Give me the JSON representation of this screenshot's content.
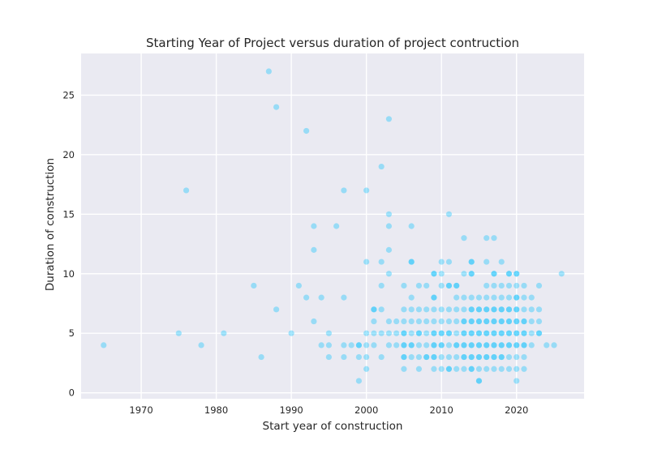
{
  "chart_data": {
    "type": "scatter",
    "title": "Starting Year of Project versus duration of project contruction",
    "xlabel": "Start year of construction",
    "ylabel": "Duration of construction",
    "xlim": [
      1962,
      2029
    ],
    "ylim": [
      -0.5,
      28.5
    ],
    "xticks": [
      1970,
      1980,
      1990,
      2000,
      2010,
      2020
    ],
    "yticks": [
      0,
      5,
      10,
      15,
      20,
      25
    ],
    "grid": true,
    "background": "#eaeaf2",
    "point_color": "#00bfff",
    "point_alpha": 0.35,
    "points": [
      [
        1965,
        4
      ],
      [
        1975,
        5
      ],
      [
        1976,
        17
      ],
      [
        1978,
        4
      ],
      [
        1981,
        5
      ],
      [
        1985,
        9
      ],
      [
        1986,
        3
      ],
      [
        1987,
        27
      ],
      [
        1988,
        24
      ],
      [
        1988,
        7
      ],
      [
        1990,
        5
      ],
      [
        1991,
        9
      ],
      [
        1992,
        22
      ],
      [
        1992,
        8
      ],
      [
        1993,
        14
      ],
      [
        1993,
        12
      ],
      [
        1993,
        6
      ],
      [
        1994,
        8
      ],
      [
        1994,
        4
      ],
      [
        1995,
        5
      ],
      [
        1995,
        4
      ],
      [
        1995,
        3
      ],
      [
        1996,
        14
      ],
      [
        1997,
        17
      ],
      [
        1997,
        8
      ],
      [
        1997,
        4
      ],
      [
        1997,
        3
      ],
      [
        1998,
        4
      ],
      [
        1999,
        4
      ],
      [
        1999,
        4
      ],
      [
        1999,
        3
      ],
      [
        1999,
        1
      ],
      [
        2000,
        17
      ],
      [
        2000,
        11
      ],
      [
        2000,
        5
      ],
      [
        2000,
        4
      ],
      [
        2000,
        3
      ],
      [
        2000,
        2
      ],
      [
        2001,
        7
      ],
      [
        2001,
        7
      ],
      [
        2001,
        6
      ],
      [
        2001,
        5
      ],
      [
        2001,
        4
      ],
      [
        2002,
        19
      ],
      [
        2002,
        11
      ],
      [
        2002,
        9
      ],
      [
        2002,
        7
      ],
      [
        2002,
        5
      ],
      [
        2002,
        3
      ],
      [
        2003,
        23
      ],
      [
        2003,
        15
      ],
      [
        2003,
        14
      ],
      [
        2003,
        12
      ],
      [
        2003,
        10
      ],
      [
        2003,
        6
      ],
      [
        2003,
        5
      ],
      [
        2003,
        4
      ],
      [
        2004,
        6
      ],
      [
        2004,
        5
      ],
      [
        2004,
        4
      ],
      [
        2005,
        9
      ],
      [
        2005,
        7
      ],
      [
        2005,
        6
      ],
      [
        2005,
        5
      ],
      [
        2005,
        5
      ],
      [
        2005,
        4
      ],
      [
        2005,
        4
      ],
      [
        2005,
        3
      ],
      [
        2005,
        3
      ],
      [
        2005,
        2
      ],
      [
        2006,
        14
      ],
      [
        2006,
        11
      ],
      [
        2006,
        11
      ],
      [
        2006,
        8
      ],
      [
        2006,
        7
      ],
      [
        2006,
        6
      ],
      [
        2006,
        5
      ],
      [
        2006,
        4
      ],
      [
        2006,
        4
      ],
      [
        2006,
        3
      ],
      [
        2007,
        9
      ],
      [
        2007,
        7
      ],
      [
        2007,
        6
      ],
      [
        2007,
        5
      ],
      [
        2007,
        5
      ],
      [
        2007,
        4
      ],
      [
        2007,
        3
      ],
      [
        2007,
        2
      ],
      [
        2008,
        9
      ],
      [
        2008,
        7
      ],
      [
        2008,
        6
      ],
      [
        2008,
        5
      ],
      [
        2008,
        4
      ],
      [
        2008,
        3
      ],
      [
        2008,
        3
      ],
      [
        2009,
        10
      ],
      [
        2009,
        10
      ],
      [
        2009,
        8
      ],
      [
        2009,
        8
      ],
      [
        2009,
        7
      ],
      [
        2009,
        6
      ],
      [
        2009,
        5
      ],
      [
        2009,
        5
      ],
      [
        2009,
        4
      ],
      [
        2009,
        4
      ],
      [
        2009,
        3
      ],
      [
        2009,
        3
      ],
      [
        2009,
        2
      ],
      [
        2010,
        11
      ],
      [
        2010,
        10
      ],
      [
        2010,
        9
      ],
      [
        2010,
        7
      ],
      [
        2010,
        6
      ],
      [
        2010,
        5
      ],
      [
        2010,
        5
      ],
      [
        2010,
        4
      ],
      [
        2010,
        4
      ],
      [
        2010,
        3
      ],
      [
        2010,
        2
      ],
      [
        2011,
        15
      ],
      [
        2011,
        11
      ],
      [
        2011,
        9
      ],
      [
        2011,
        9
      ],
      [
        2011,
        7
      ],
      [
        2011,
        6
      ],
      [
        2011,
        5
      ],
      [
        2011,
        5
      ],
      [
        2011,
        4
      ],
      [
        2011,
        3
      ],
      [
        2011,
        2
      ],
      [
        2011,
        2
      ],
      [
        2012,
        9
      ],
      [
        2012,
        9
      ],
      [
        2012,
        8
      ],
      [
        2012,
        7
      ],
      [
        2012,
        6
      ],
      [
        2012,
        5
      ],
      [
        2012,
        4
      ],
      [
        2012,
        4
      ],
      [
        2012,
        3
      ],
      [
        2012,
        2
      ],
      [
        2013,
        13
      ],
      [
        2013,
        10
      ],
      [
        2013,
        8
      ],
      [
        2013,
        7
      ],
      [
        2013,
        6
      ],
      [
        2013,
        6
      ],
      [
        2013,
        5
      ],
      [
        2013,
        5
      ],
      [
        2013,
        4
      ],
      [
        2013,
        4
      ],
      [
        2013,
        3
      ],
      [
        2013,
        3
      ],
      [
        2013,
        2
      ],
      [
        2014,
        11
      ],
      [
        2014,
        11
      ],
      [
        2014,
        10
      ],
      [
        2014,
        10
      ],
      [
        2014,
        8
      ],
      [
        2014,
        7
      ],
      [
        2014,
        7
      ],
      [
        2014,
        6
      ],
      [
        2014,
        6
      ],
      [
        2014,
        5
      ],
      [
        2014,
        5
      ],
      [
        2014,
        4
      ],
      [
        2014,
        4
      ],
      [
        2014,
        3
      ],
      [
        2014,
        3
      ],
      [
        2014,
        2
      ],
      [
        2014,
        2
      ],
      [
        2015,
        8
      ],
      [
        2015,
        7
      ],
      [
        2015,
        7
      ],
      [
        2015,
        6
      ],
      [
        2015,
        6
      ],
      [
        2015,
        5
      ],
      [
        2015,
        5
      ],
      [
        2015,
        4
      ],
      [
        2015,
        4
      ],
      [
        2015,
        3
      ],
      [
        2015,
        3
      ],
      [
        2015,
        2
      ],
      [
        2015,
        1
      ],
      [
        2015,
        1
      ],
      [
        2016,
        13
      ],
      [
        2016,
        11
      ],
      [
        2016,
        9
      ],
      [
        2016,
        8
      ],
      [
        2016,
        7
      ],
      [
        2016,
        7
      ],
      [
        2016,
        6
      ],
      [
        2016,
        6
      ],
      [
        2016,
        5
      ],
      [
        2016,
        5
      ],
      [
        2016,
        4
      ],
      [
        2016,
        4
      ],
      [
        2016,
        3
      ],
      [
        2016,
        3
      ],
      [
        2016,
        2
      ],
      [
        2017,
        13
      ],
      [
        2017,
        10
      ],
      [
        2017,
        10
      ],
      [
        2017,
        9
      ],
      [
        2017,
        8
      ],
      [
        2017,
        7
      ],
      [
        2017,
        7
      ],
      [
        2017,
        6
      ],
      [
        2017,
        6
      ],
      [
        2017,
        5
      ],
      [
        2017,
        5
      ],
      [
        2017,
        4
      ],
      [
        2017,
        4
      ],
      [
        2017,
        3
      ],
      [
        2017,
        3
      ],
      [
        2017,
        2
      ],
      [
        2018,
        11
      ],
      [
        2018,
        9
      ],
      [
        2018,
        8
      ],
      [
        2018,
        7
      ],
      [
        2018,
        7
      ],
      [
        2018,
        6
      ],
      [
        2018,
        6
      ],
      [
        2018,
        5
      ],
      [
        2018,
        5
      ],
      [
        2018,
        4
      ],
      [
        2018,
        4
      ],
      [
        2018,
        3
      ],
      [
        2018,
        3
      ],
      [
        2018,
        2
      ],
      [
        2019,
        10
      ],
      [
        2019,
        10
      ],
      [
        2019,
        9
      ],
      [
        2019,
        8
      ],
      [
        2019,
        7
      ],
      [
        2019,
        7
      ],
      [
        2019,
        6
      ],
      [
        2019,
        6
      ],
      [
        2019,
        5
      ],
      [
        2019,
        5
      ],
      [
        2019,
        4
      ],
      [
        2019,
        4
      ],
      [
        2019,
        3
      ],
      [
        2019,
        2
      ],
      [
        2020,
        10
      ],
      [
        2020,
        10
      ],
      [
        2020,
        9
      ],
      [
        2020,
        8
      ],
      [
        2020,
        8
      ],
      [
        2020,
        7
      ],
      [
        2020,
        7
      ],
      [
        2020,
        6
      ],
      [
        2020,
        6
      ],
      [
        2020,
        5
      ],
      [
        2020,
        5
      ],
      [
        2020,
        4
      ],
      [
        2020,
        4
      ],
      [
        2020,
        3
      ],
      [
        2020,
        2
      ],
      [
        2020,
        1
      ],
      [
        2021,
        9
      ],
      [
        2021,
        8
      ],
      [
        2021,
        7
      ],
      [
        2021,
        6
      ],
      [
        2021,
        6
      ],
      [
        2021,
        5
      ],
      [
        2021,
        5
      ],
      [
        2021,
        4
      ],
      [
        2021,
        4
      ],
      [
        2021,
        3
      ],
      [
        2021,
        2
      ],
      [
        2022,
        8
      ],
      [
        2022,
        7
      ],
      [
        2022,
        6
      ],
      [
        2022,
        5
      ],
      [
        2022,
        4
      ],
      [
        2023,
        9
      ],
      [
        2023,
        7
      ],
      [
        2023,
        6
      ],
      [
        2023,
        5
      ],
      [
        2023,
        5
      ],
      [
        2024,
        4
      ],
      [
        2025,
        4
      ],
      [
        2026,
        10
      ]
    ]
  }
}
